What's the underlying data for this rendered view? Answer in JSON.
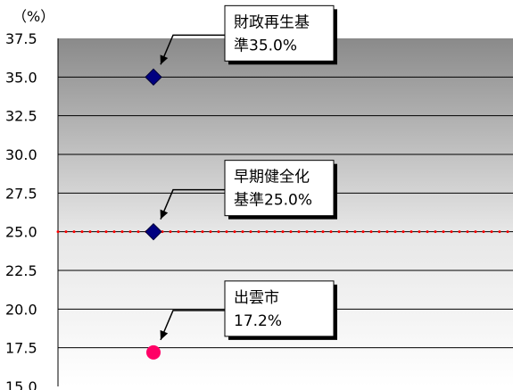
{
  "chart_data": {
    "type": "scatter",
    "title": "",
    "xlabel": "",
    "ylabel": "",
    "unit_label": "（%）",
    "ylim": [
      15.0,
      37.5
    ],
    "yticks": [
      "37.5",
      "35.0",
      "32.5",
      "30.0",
      "27.5",
      "25.0",
      "22.5",
      "20.0",
      "17.5",
      "15.0"
    ],
    "grid": true,
    "reference_line": {
      "value": 25.0,
      "style": "dotted",
      "color": "#ff0000"
    },
    "points": [
      {
        "value": 35.0,
        "marker": "diamond",
        "color": "#000080",
        "label_lines": [
          "財政再生基",
          "準35.0%"
        ]
      },
      {
        "value": 25.0,
        "marker": "diamond",
        "color": "#000080",
        "label_lines": [
          "早期健全化",
          "基準25.0%"
        ]
      },
      {
        "value": 17.2,
        "marker": "circle",
        "color": "#ff0066",
        "label_lines": [
          "出雲市",
          "17.2%"
        ]
      }
    ]
  }
}
